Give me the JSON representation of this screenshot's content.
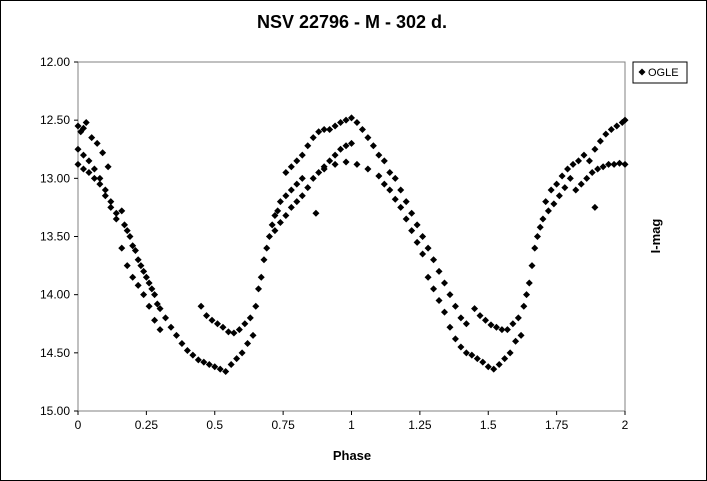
{
  "chart_data": {
    "type": "scatter",
    "title": "NSV 22796 - M - 302 d.",
    "xlabel": "Phase",
    "ylabel": "I-mag",
    "xlim": [
      0,
      2
    ],
    "ylim": [
      12.0,
      15.0
    ],
    "y_inverted": true,
    "x_ticks": [
      "0",
      "0.25",
      "0.5",
      "0.75",
      "1",
      "1.25",
      "1.5",
      "1.75",
      "2"
    ],
    "y_ticks": [
      "12.00",
      "12.50",
      "13.00",
      "13.50",
      "14.00",
      "14.50",
      "15.00"
    ],
    "grid": false,
    "legend": {
      "position": "top-right",
      "entries": [
        "OGLE"
      ]
    },
    "marker": "diamond",
    "color": "#000000",
    "series": [
      {
        "name": "OGLE",
        "points": [
          [
            0.0,
            12.55
          ],
          [
            0.01,
            12.6
          ],
          [
            0.02,
            12.57
          ],
          [
            0.03,
            12.52
          ],
          [
            0.05,
            12.65
          ],
          [
            0.07,
            12.7
          ],
          [
            0.09,
            12.78
          ],
          [
            0.11,
            12.9
          ],
          [
            0.0,
            12.75
          ],
          [
            0.02,
            12.8
          ],
          [
            0.04,
            12.85
          ],
          [
            0.06,
            12.92
          ],
          [
            0.08,
            13.0
          ],
          [
            0.1,
            13.1
          ],
          [
            0.12,
            13.2
          ],
          [
            0.14,
            13.3
          ],
          [
            0.0,
            12.88
          ],
          [
            0.02,
            12.92
          ],
          [
            0.04,
            12.95
          ],
          [
            0.06,
            13.0
          ],
          [
            0.08,
            13.05
          ],
          [
            0.1,
            13.15
          ],
          [
            0.12,
            13.25
          ],
          [
            0.14,
            13.35
          ],
          [
            0.16,
            13.28
          ],
          [
            0.17,
            13.4
          ],
          [
            0.18,
            13.45
          ],
          [
            0.19,
            13.5
          ],
          [
            0.2,
            13.58
          ],
          [
            0.21,
            13.62
          ],
          [
            0.22,
            13.7
          ],
          [
            0.23,
            13.75
          ],
          [
            0.24,
            13.8
          ],
          [
            0.25,
            13.85
          ],
          [
            0.26,
            13.9
          ],
          [
            0.27,
            13.95
          ],
          [
            0.28,
            14.0
          ],
          [
            0.29,
            14.08
          ],
          [
            0.3,
            14.12
          ],
          [
            0.32,
            14.2
          ],
          [
            0.16,
            13.6
          ],
          [
            0.18,
            13.75
          ],
          [
            0.2,
            13.85
          ],
          [
            0.22,
            13.92
          ],
          [
            0.24,
            14.0
          ],
          [
            0.26,
            14.1
          ],
          [
            0.28,
            14.22
          ],
          [
            0.3,
            14.3
          ],
          [
            0.34,
            14.28
          ],
          [
            0.36,
            14.35
          ],
          [
            0.38,
            14.42
          ],
          [
            0.4,
            14.48
          ],
          [
            0.42,
            14.52
          ],
          [
            0.44,
            14.56
          ],
          [
            0.46,
            14.58
          ],
          [
            0.48,
            14.6
          ],
          [
            0.5,
            14.62
          ],
          [
            0.52,
            14.64
          ],
          [
            0.54,
            14.66
          ],
          [
            0.56,
            14.6
          ],
          [
            0.58,
            14.55
          ],
          [
            0.6,
            14.5
          ],
          [
            0.62,
            14.42
          ],
          [
            0.64,
            14.35
          ],
          [
            0.45,
            14.1
          ],
          [
            0.47,
            14.18
          ],
          [
            0.49,
            14.22
          ],
          [
            0.51,
            14.25
          ],
          [
            0.53,
            14.28
          ],
          [
            0.55,
            14.32
          ],
          [
            0.57,
            14.33
          ],
          [
            0.59,
            14.3
          ],
          [
            0.61,
            14.25
          ],
          [
            0.63,
            14.2
          ],
          [
            0.65,
            14.1
          ],
          [
            0.66,
            13.95
          ],
          [
            0.67,
            13.85
          ],
          [
            0.68,
            13.7
          ],
          [
            0.69,
            13.6
          ],
          [
            0.7,
            13.5
          ],
          [
            0.71,
            13.4
          ],
          [
            0.72,
            13.32
          ],
          [
            0.73,
            13.28
          ],
          [
            0.74,
            13.2
          ],
          [
            0.76,
            13.15
          ],
          [
            0.78,
            13.1
          ],
          [
            0.8,
            13.05
          ],
          [
            0.82,
            13.0
          ],
          [
            0.72,
            13.45
          ],
          [
            0.74,
            13.38
          ],
          [
            0.76,
            13.32
          ],
          [
            0.78,
            13.25
          ],
          [
            0.8,
            13.2
          ],
          [
            0.82,
            13.15
          ],
          [
            0.84,
            13.08
          ],
          [
            0.86,
            13.0
          ],
          [
            0.76,
            12.95
          ],
          [
            0.78,
            12.9
          ],
          [
            0.8,
            12.85
          ],
          [
            0.82,
            12.8
          ],
          [
            0.84,
            12.72
          ],
          [
            0.86,
            12.65
          ],
          [
            0.88,
            12.6
          ],
          [
            0.9,
            12.58
          ],
          [
            0.88,
            12.95
          ],
          [
            0.9,
            12.92
          ],
          [
            0.92,
            12.85
          ],
          [
            0.94,
            12.8
          ],
          [
            0.96,
            12.75
          ],
          [
            0.98,
            12.72
          ],
          [
            1.0,
            12.7
          ],
          [
            0.87,
            13.3
          ],
          [
            0.92,
            12.58
          ],
          [
            0.94,
            12.55
          ],
          [
            0.96,
            12.52
          ],
          [
            0.98,
            12.5
          ],
          [
            1.0,
            12.48
          ],
          [
            1.02,
            12.52
          ],
          [
            1.04,
            12.58
          ],
          [
            1.06,
            12.65
          ],
          [
            0.9,
            12.9
          ],
          [
            0.94,
            12.88
          ],
          [
            0.98,
            12.86
          ],
          [
            1.02,
            12.88
          ],
          [
            1.06,
            12.92
          ],
          [
            1.1,
            12.98
          ],
          [
            1.08,
            12.72
          ],
          [
            1.1,
            12.8
          ],
          [
            1.12,
            12.85
          ],
          [
            1.14,
            12.95
          ],
          [
            1.16,
            13.0
          ],
          [
            1.18,
            13.1
          ],
          [
            1.2,
            13.2
          ],
          [
            1.22,
            13.3
          ],
          [
            1.24,
            13.4
          ],
          [
            1.26,
            13.5
          ],
          [
            1.12,
            13.05
          ],
          [
            1.14,
            13.1
          ],
          [
            1.16,
            13.18
          ],
          [
            1.18,
            13.25
          ],
          [
            1.2,
            13.35
          ],
          [
            1.22,
            13.45
          ],
          [
            1.24,
            13.55
          ],
          [
            1.26,
            13.65
          ],
          [
            1.28,
            13.6
          ],
          [
            1.3,
            13.7
          ],
          [
            1.32,
            13.8
          ],
          [
            1.34,
            13.9
          ],
          [
            1.36,
            14.0
          ],
          [
            1.38,
            14.1
          ],
          [
            1.4,
            14.2
          ],
          [
            1.42,
            14.25
          ],
          [
            1.28,
            13.85
          ],
          [
            1.3,
            13.95
          ],
          [
            1.32,
            14.05
          ],
          [
            1.34,
            14.15
          ],
          [
            1.36,
            14.28
          ],
          [
            1.38,
            14.38
          ],
          [
            1.4,
            14.45
          ],
          [
            1.42,
            14.5
          ],
          [
            1.44,
            14.52
          ],
          [
            1.46,
            14.55
          ],
          [
            1.48,
            14.58
          ],
          [
            1.5,
            14.62
          ],
          [
            1.52,
            14.64
          ],
          [
            1.54,
            14.6
          ],
          [
            1.56,
            14.55
          ],
          [
            1.58,
            14.5
          ],
          [
            1.45,
            14.12
          ],
          [
            1.47,
            14.18
          ],
          [
            1.49,
            14.22
          ],
          [
            1.51,
            14.26
          ],
          [
            1.53,
            14.28
          ],
          [
            1.55,
            14.3
          ],
          [
            1.57,
            14.3
          ],
          [
            1.59,
            14.25
          ],
          [
            1.61,
            14.2
          ],
          [
            1.63,
            14.1
          ],
          [
            1.64,
            14.0
          ],
          [
            1.65,
            13.9
          ],
          [
            1.66,
            13.75
          ],
          [
            1.67,
            13.6
          ],
          [
            1.68,
            13.5
          ],
          [
            1.69,
            13.42
          ],
          [
            1.6,
            14.4
          ],
          [
            1.62,
            14.35
          ],
          [
            1.7,
            13.35
          ],
          [
            1.72,
            13.28
          ],
          [
            1.74,
            13.22
          ],
          [
            1.76,
            13.15
          ],
          [
            1.78,
            13.08
          ],
          [
            1.8,
            13.0
          ],
          [
            1.71,
            13.2
          ],
          [
            1.73,
            13.1
          ],
          [
            1.75,
            13.05
          ],
          [
            1.77,
            12.98
          ],
          [
            1.79,
            12.92
          ],
          [
            1.81,
            12.88
          ],
          [
            1.83,
            12.85
          ],
          [
            1.85,
            12.8
          ],
          [
            1.82,
            13.1
          ],
          [
            1.84,
            13.05
          ],
          [
            1.86,
            13.0
          ],
          [
            1.88,
            12.95
          ],
          [
            1.9,
            12.92
          ],
          [
            1.92,
            12.9
          ],
          [
            1.94,
            12.88
          ],
          [
            1.96,
            12.88
          ],
          [
            1.98,
            12.87
          ],
          [
            2.0,
            12.88
          ],
          [
            1.89,
            13.25
          ],
          [
            1.87,
            12.85
          ],
          [
            1.89,
            12.75
          ],
          [
            1.91,
            12.68
          ],
          [
            1.93,
            12.62
          ],
          [
            1.95,
            12.58
          ],
          [
            1.97,
            12.55
          ],
          [
            1.99,
            12.52
          ],
          [
            2.0,
            12.5
          ]
        ]
      }
    ]
  }
}
